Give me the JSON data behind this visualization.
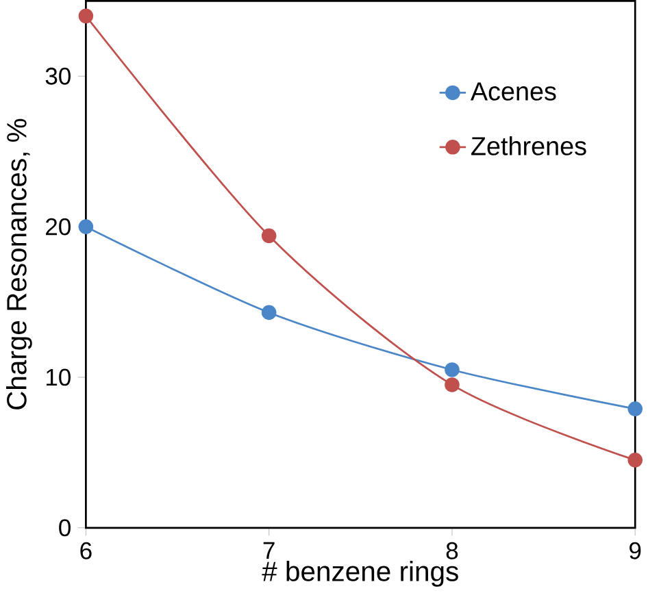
{
  "chart_data": {
    "type": "line",
    "xlabel": "# benzene rings",
    "ylabel": "Charge Resonances, %",
    "x": [
      6,
      7,
      8,
      9
    ],
    "series": [
      {
        "name": "Acenes",
        "color": "#4a86c8",
        "values": [
          20.0,
          14.3,
          10.5,
          7.9
        ]
      },
      {
        "name": "Zethrenes",
        "color": "#c0504d",
        "values": [
          34.0,
          19.4,
          9.5,
          4.5
        ]
      }
    ],
    "xlim": [
      6,
      9
    ],
    "ylim": [
      0,
      35
    ],
    "xticks": [
      6,
      7,
      8,
      9
    ],
    "yticks": [
      0,
      10,
      20,
      30
    ],
    "grid": false,
    "legend": "top right",
    "marker": "circle",
    "line_style": "solid"
  }
}
